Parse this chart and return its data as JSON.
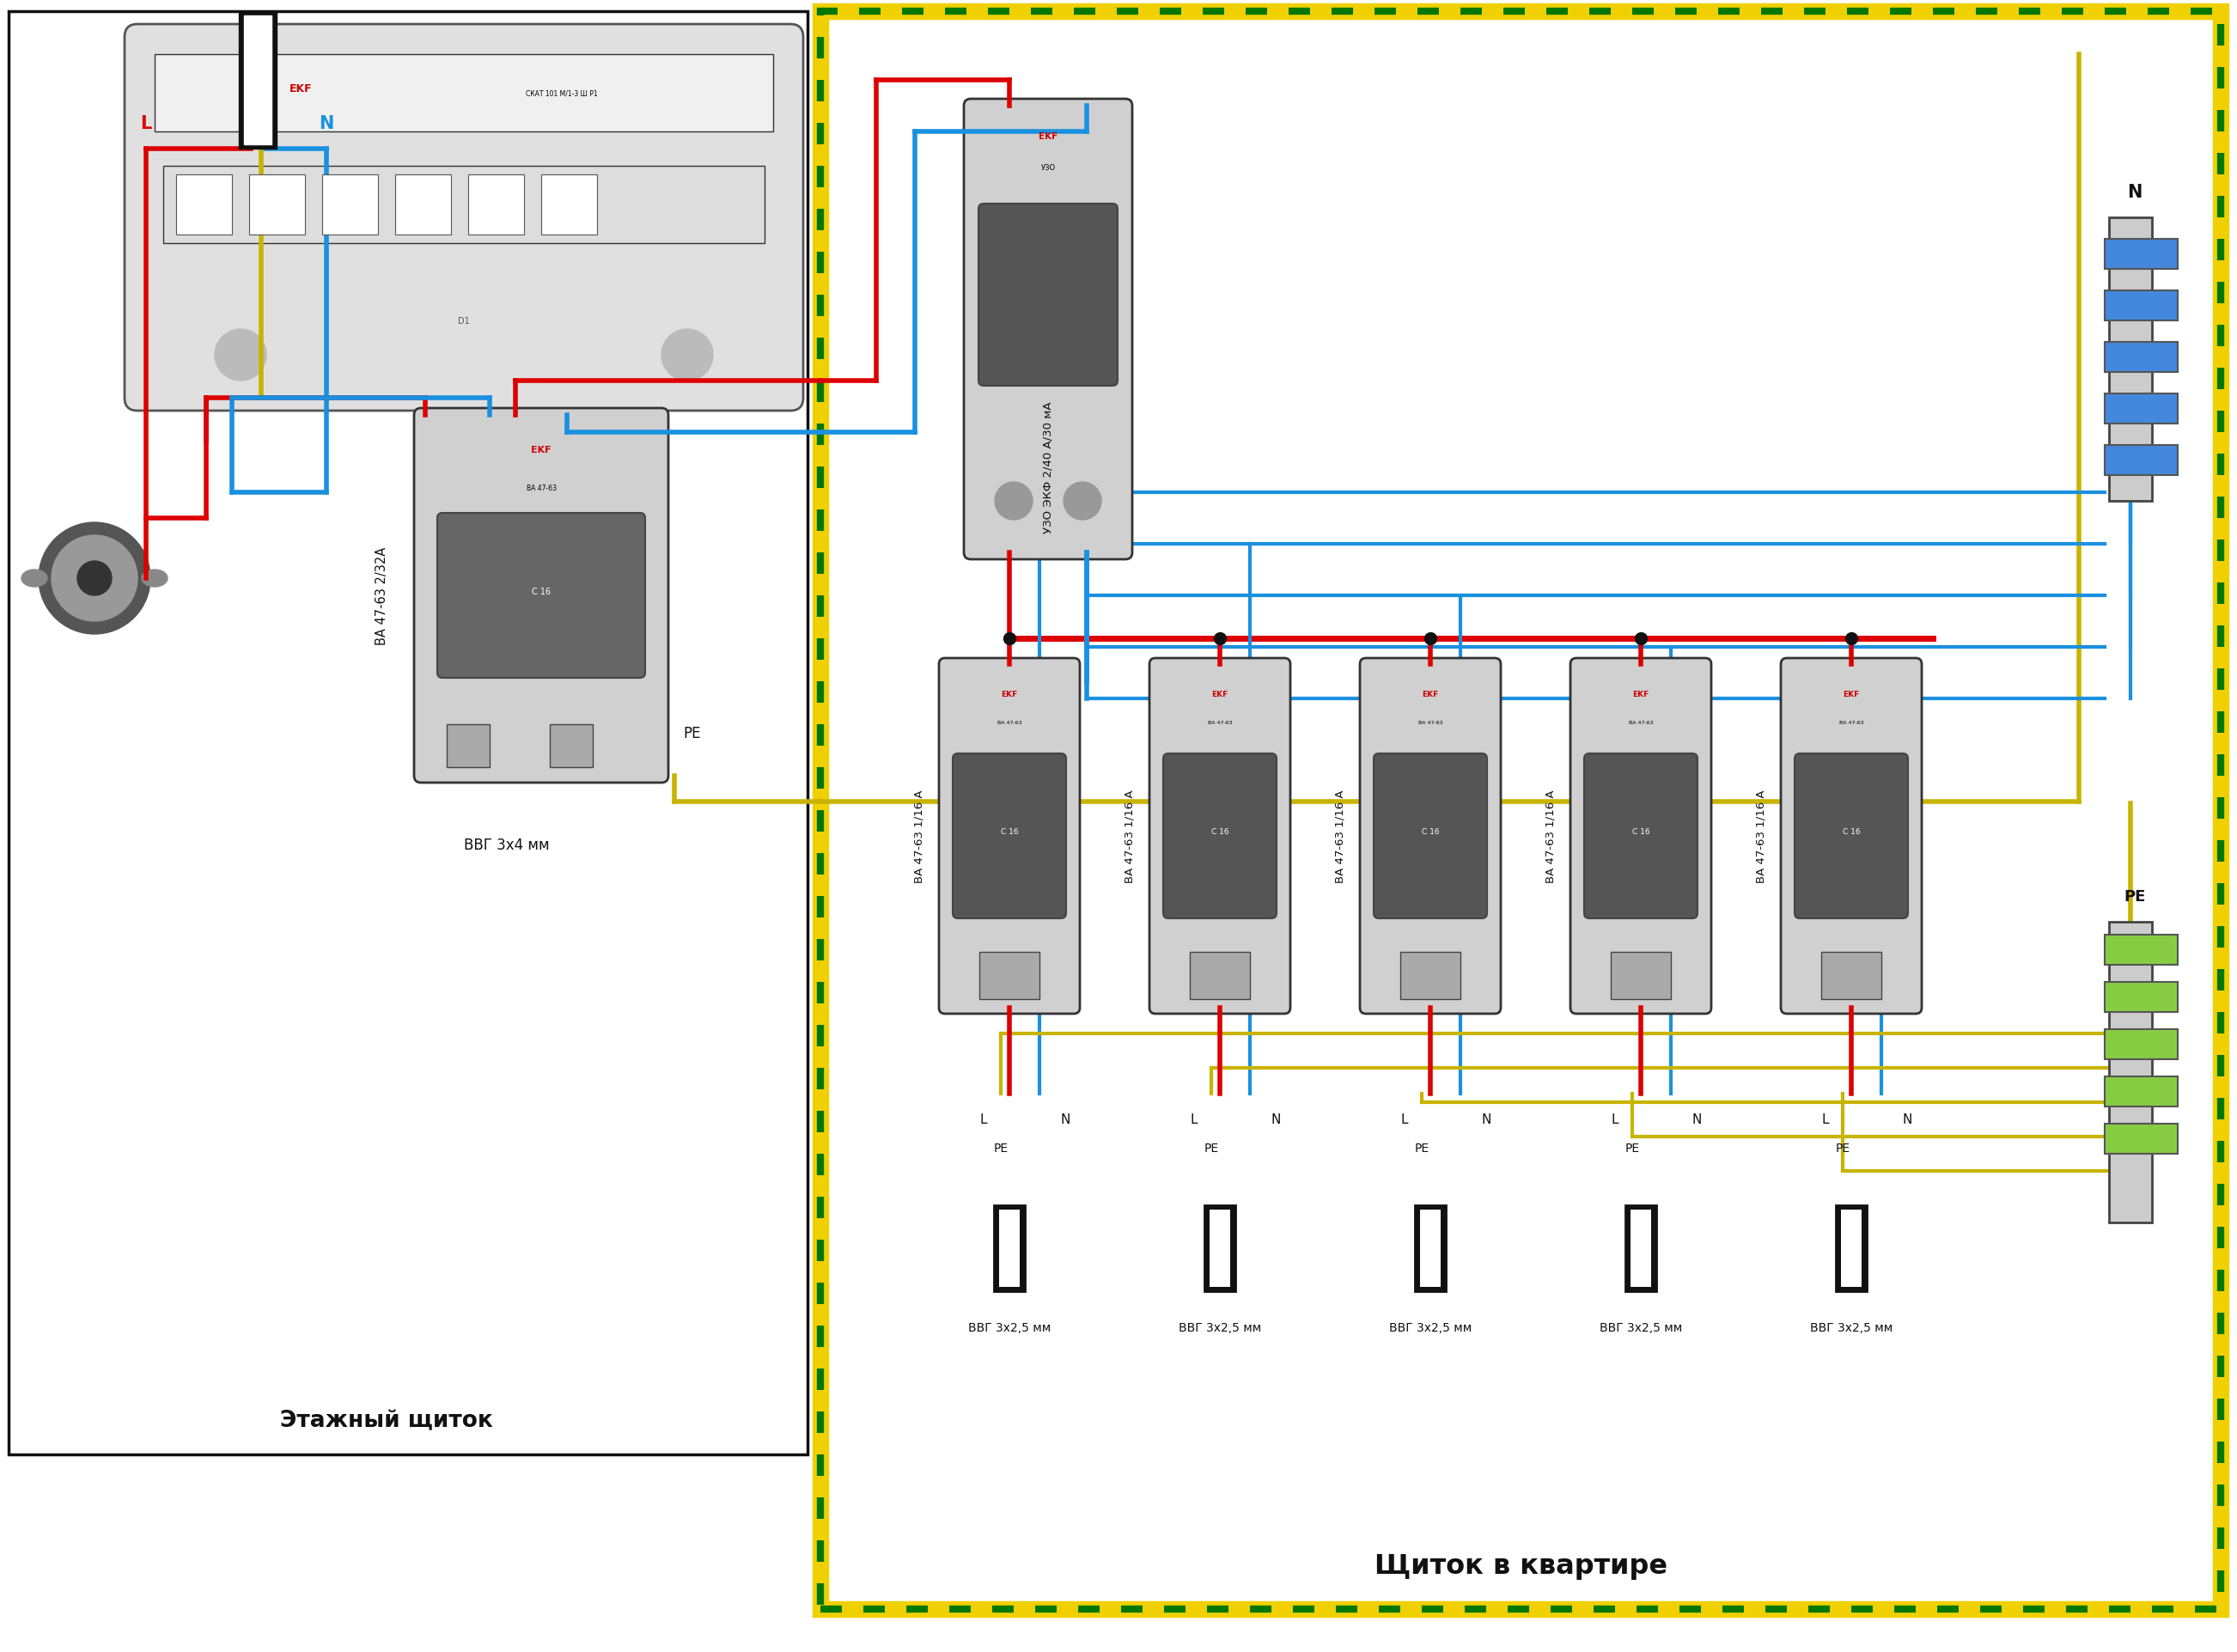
{
  "title_left": "Этажный щиток",
  "title_right": "Щиток в квартире",
  "cable_left": "ВВГ 3х4 мм",
  "cable_outputs": [
    "ВВГ 3х2,5 мм",
    "ВВГ 3х2,5 мм",
    "ВВГ 3х2,5 мм",
    "ВВГ 3х2,5 мм",
    "ВВГ 3х2,5 мм"
  ],
  "cb_left_label": "ВА 47-63 2/32А",
  "uzo_label": "УЗО ЭКФ 2/40 А/30 мА",
  "cb_labels": [
    "ВА 47-63 1/16 А",
    "ВА 47-63 1/16 А",
    "ВА 47-63 1/16 А",
    "ВА 47-63 1/16 А",
    "ВА 47-63 1/16 А"
  ],
  "L_label": "L",
  "N_label": "N",
  "PE_label": "PE",
  "RED": "#dd0000",
  "BLUE": "#1a90e0",
  "YG": "#c8b400",
  "GREEN": "#007700",
  "YELLOW": "#f0d000",
  "BLACK": "#111111",
  "WHITE": "#ffffff",
  "GRAY_CB": "#d0d0d0",
  "GRAY_DARK": "#888888",
  "bg_color": "#ffffff",
  "lw_wire": 4.0,
  "lw_wire_thin": 3.0,
  "lw_border": 3.0
}
